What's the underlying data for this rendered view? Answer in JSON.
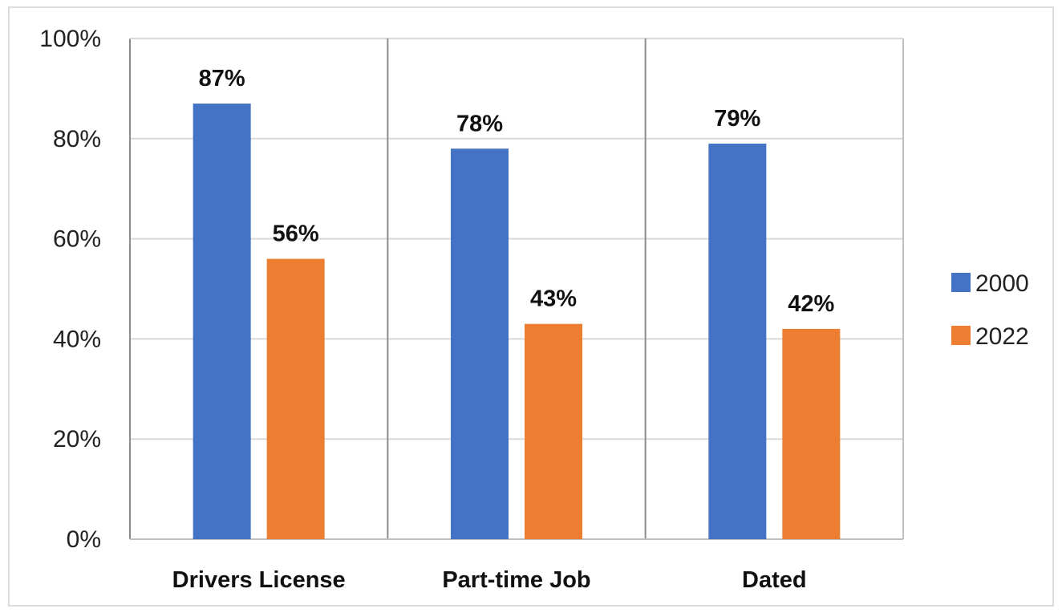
{
  "chart_data": {
    "type": "bar",
    "title": "",
    "xlabel": "",
    "ylabel": "",
    "categories": [
      "Drivers License",
      "Part-time Job",
      "Dated"
    ],
    "series": [
      {
        "name": "2000",
        "color": "#4472C4",
        "values": [
          87,
          78,
          79
        ],
        "labels": [
          "87%",
          "78%",
          "79%"
        ]
      },
      {
        "name": "2022",
        "color": "#ED7D31",
        "values": [
          56,
          43,
          42
        ],
        "labels": [
          "56%",
          "43%",
          "42%"
        ]
      }
    ],
    "ylim": [
      0,
      100
    ],
    "yticks": [
      0,
      20,
      40,
      60,
      80,
      100
    ],
    "ytick_labels": [
      "0%",
      "20%",
      "40%",
      "60%",
      "80%",
      "100%"
    ],
    "grid": true,
    "legend_position": "right"
  }
}
